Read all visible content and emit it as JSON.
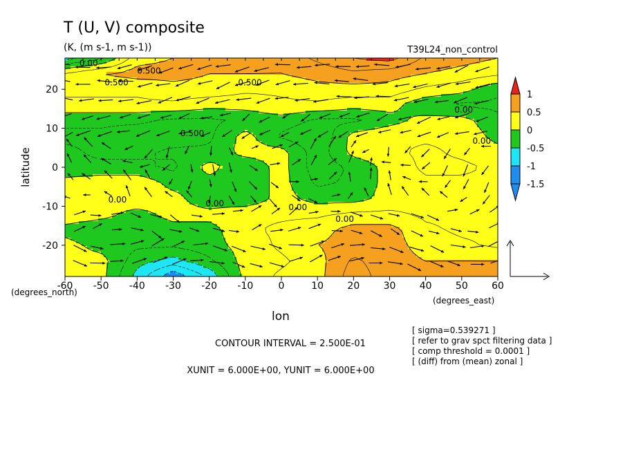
{
  "title": "T (U, V) composite",
  "subtitle": "(K, (m s-1, m s-1))",
  "run_name": "T39L24_non_control",
  "colors": {
    "red": "#e8231b",
    "orange": "#f5a01f",
    "yellow": "#ffff1a",
    "green": "#1ec81e",
    "cyan": "#1fe6f5",
    "blue": "#1f8cf0",
    "line": "#000000",
    "background": "#ffffff"
  },
  "chart_data": {
    "type": "heatmap",
    "overlay": "wind-vector field",
    "xlabel": "lon",
    "ylabel": "latitude",
    "x_unit_label": "(degrees_east)",
    "y_unit_label": "(degrees_north)",
    "xlim": [
      -60,
      60
    ],
    "ylim": [
      -28,
      28
    ],
    "x_ticks": [
      -60,
      -50,
      -40,
      -30,
      -20,
      -10,
      0,
      10,
      20,
      30,
      40,
      50,
      60
    ],
    "y_ticks": [
      20,
      10,
      0,
      -10,
      -20
    ],
    "colorbar": {
      "labels": [
        "1",
        "0.5",
        "0",
        "-0.5",
        "-1",
        "-1.5"
      ],
      "levels": [
        1.0,
        0.5,
        0.0,
        -0.5,
        -1.0,
        -1.5
      ],
      "extend": "both"
    },
    "contour_labels": [
      "0.500",
      "0.500",
      "0.500",
      "0.500",
      "0.00",
      "0.00",
      "0.00",
      "0.00",
      "0.00",
      "0.00",
      "0.00"
    ],
    "fields": {
      "lon": [
        -60,
        -50,
        -40,
        -30,
        -20,
        -10,
        0,
        10,
        20,
        30,
        40,
        50,
        60
      ],
      "lat": [
        28,
        24,
        20,
        16,
        12,
        8,
        4,
        0,
        -4,
        -8,
        -12,
        -16,
        -20,
        -24,
        -28
      ],
      "temperature_anomaly_K": [
        [
          -0.6,
          -0.3,
          0.4,
          0.5,
          0.6,
          0.7,
          0.6,
          0.8,
          1.0,
          1.1,
          0.7,
          0.6,
          0.5
        ],
        [
          0.3,
          0.5,
          0.6,
          0.6,
          0.5,
          0.5,
          0.5,
          0.6,
          0.7,
          0.6,
          0.5,
          0.4,
          0.3
        ],
        [
          0.3,
          0.3,
          0.3,
          0.4,
          0.4,
          0.3,
          0.3,
          0.4,
          0.4,
          0.4,
          0.2,
          0.1,
          -0.2
        ],
        [
          0.2,
          0.2,
          0.2,
          0.2,
          0.1,
          0.1,
          0.2,
          0.2,
          0.1,
          0.1,
          -0.2,
          -0.3,
          -0.3
        ],
        [
          -0.2,
          -0.2,
          -0.2,
          -0.3,
          -0.3,
          -0.2,
          -0.1,
          -0.3,
          -0.3,
          -0.1,
          0.1,
          0.1,
          -0.2
        ],
        [
          -0.3,
          -0.3,
          -0.4,
          -0.4,
          -0.3,
          0.1,
          -0.3,
          -0.5,
          0.1,
          0.2,
          0.2,
          0.2,
          -0.1
        ],
        [
          -0.2,
          -0.3,
          -0.3,
          -0.2,
          -0.2,
          0.1,
          0.1,
          -0.4,
          0.1,
          0.2,
          0.3,
          0.2,
          0.1
        ],
        [
          -0.2,
          -0.2,
          -0.2,
          -0.3,
          0.1,
          -0.2,
          0.1,
          -0.4,
          -0.2,
          0.1,
          0.3,
          0.3,
          0.2
        ],
        [
          0.1,
          0.2,
          0.2,
          -0.1,
          -0.1,
          -0.2,
          0.1,
          -0.3,
          -0.2,
          0.1,
          0.2,
          0.2,
          0.2
        ],
        [
          0.2,
          0.1,
          0.2,
          0.1,
          -0.2,
          -0.2,
          0.1,
          -0.1,
          -0.1,
          0.1,
          0.2,
          0.2,
          0.2
        ],
        [
          0.2,
          0.1,
          -0.1,
          0.1,
          0.1,
          0.2,
          0.2,
          0.2,
          0.3,
          0.3,
          0.2,
          0.2,
          0.2
        ],
        [
          -0.1,
          -0.2,
          -0.2,
          -0.1,
          -0.1,
          0.2,
          0.3,
          0.4,
          0.6,
          0.6,
          0.3,
          0.2,
          0.2
        ],
        [
          0.1,
          -0.1,
          -0.2,
          -0.2,
          -0.1,
          0.1,
          0.3,
          0.5,
          0.6,
          0.6,
          0.4,
          0.3,
          0.2
        ],
        [
          0.1,
          0.1,
          -0.4,
          -0.6,
          -0.3,
          0.1,
          0.2,
          0.4,
          0.8,
          0.6,
          0.5,
          0.5,
          0.5
        ],
        [
          0.1,
          0.1,
          -0.6,
          -1.2,
          -0.7,
          0.1,
          0.3,
          0.4,
          0.9,
          0.6,
          0.5,
          0.6,
          0.6
        ]
      ]
    },
    "reference_vector": {
      "xunit": "6.000E+00",
      "yunit": "6.000E+00"
    }
  },
  "contour_interval_text": "CONTOUR INTERVAL = 2.500E-01",
  "unit_text": "XUNIT = 6.000E+00, YUNIT = 6.000E+00",
  "notes": [
    "[ sigma=0.539271 ]",
    "[ refer to grav spct filtering data ]",
    "[ comp threshold = 0.0001 ]",
    "[ (diff) from (mean) zonal ]"
  ]
}
